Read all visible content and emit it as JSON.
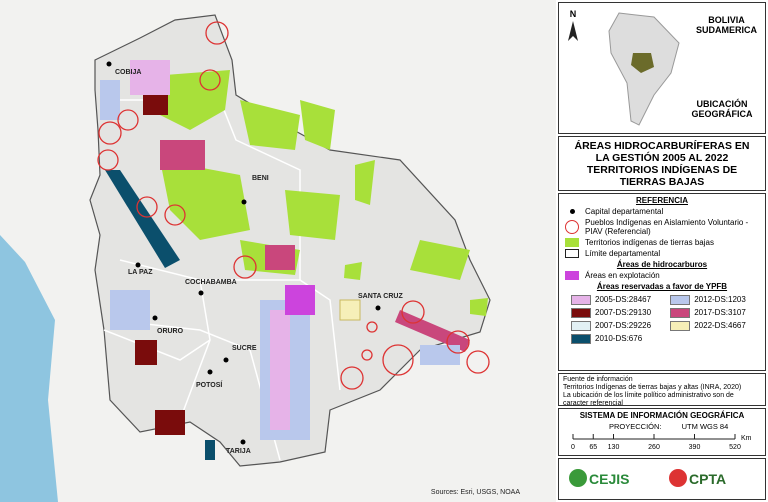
{
  "map": {
    "labels": [
      "COBIJA",
      "BENI",
      "LA PAZ",
      "COCHABAMBA",
      "SANTA CRUZ",
      "ORURO",
      "SUCRE",
      "POTOSÍ",
      "TARIJA"
    ],
    "credits": "Sources: Esri, USGS, NOAA"
  },
  "inset": {
    "north": "N",
    "country": "BOLIVIA",
    "continent": "SUDAMERICA",
    "caption": "UBICACIÓN GEOGRÁFICA"
  },
  "title": "ÁREAS HIDROCARBURÍFERAS EN LA GESTIÓN 2005 AL 2022 TERRITORIOS INDÍGENAS DE TIERRAS BAJAS",
  "legend": {
    "heading": "REFERENCIA",
    "items": [
      "Capital departamental",
      "Pueblos Indígenas en Aislamiento Voluntario - PIAV (Referencial)",
      "Territorios indígenas de tierras bajas",
      "Límite departamental"
    ],
    "hydro_heading": "Áreas de hidrocarburos",
    "exploitation": "Áreas en explotación",
    "reserved_heading": "Áreas reservadas a favor de YPFB",
    "reserved": [
      {
        "label": "2005-DS:28467",
        "color": "#e6b3e8"
      },
      {
        "label": "2007-DS:29130",
        "color": "#7a0c0c"
      },
      {
        "label": "2007-DS:29226",
        "color": "#e2f0f4"
      },
      {
        "label": "2010-DS:676",
        "color": "#0b4f6c"
      },
      {
        "label": "2012-DS:1203",
        "color": "#b9c8ec"
      },
      {
        "label": "2017-DS:3107",
        "color": "#c9477c"
      },
      {
        "label": "2022-DS:4667",
        "color": "#f6efb8"
      }
    ]
  },
  "sources": {
    "heading": "Fuente de información",
    "lines": [
      "Territorios Indígenas de tierras bajas y altas (INRA, 2020)",
      "La ubicación de los límite político administrativo son de caracter referencial"
    ]
  },
  "gis": {
    "title": "SISTEMA DE INFORMACIÓN GEOGRÁFICA",
    "projection_label": "PROYECCIÓN:",
    "projection": "UTM WGS 84",
    "scale_unit": "Km",
    "scale_ticks": [
      0,
      65,
      130,
      260,
      390,
      520
    ]
  },
  "logos": [
    "CEJIS",
    "CPTA"
  ]
}
